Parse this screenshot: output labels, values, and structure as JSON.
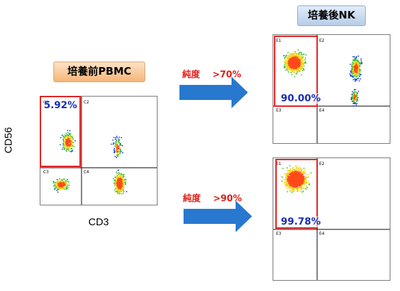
{
  "titles": {
    "pbmc": "培養前PBMC",
    "nk": "培養後NK"
  },
  "purity_labels": {
    "first": "純度    >70%",
    "second": "純度    >90%"
  },
  "axes": {
    "y": "CD56",
    "x": "CD3"
  },
  "percentages": {
    "pbmc": "5.92%",
    "nk_top": "90.00%",
    "nk_bottom": "99.78%"
  },
  "quadrants": {
    "c1": "C1",
    "c2": "C2",
    "c3": "C3",
    "c4": "C4",
    "e1": "E1",
    "e2": "E2",
    "e3": "E3",
    "e4": "E4"
  },
  "colors": {
    "arrow": "#2878d0",
    "gate": "#e02020",
    "percent_text": "#1a2fb5",
    "purity_text": "#e0201c"
  }
}
